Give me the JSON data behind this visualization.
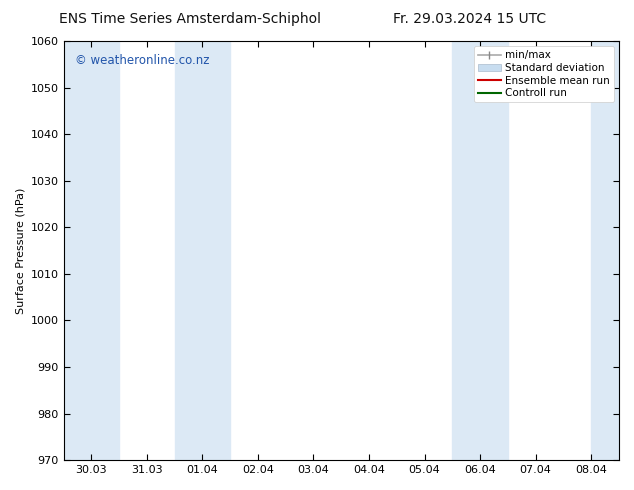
{
  "title_left": "ENS Time Series Amsterdam-Schiphol",
  "title_right": "Fr. 29.03.2024 15 UTC",
  "ylabel": "Surface Pressure (hPa)",
  "ylim": [
    970,
    1060
  ],
  "yticks": [
    970,
    980,
    990,
    1000,
    1010,
    1020,
    1030,
    1040,
    1050,
    1060
  ],
  "xtick_labels": [
    "30.03",
    "31.03",
    "01.04",
    "02.04",
    "03.04",
    "04.04",
    "05.04",
    "06.04",
    "07.04",
    "08.04"
  ],
  "xtick_positions": [
    0,
    1,
    2,
    3,
    4,
    5,
    6,
    7,
    8,
    9
  ],
  "xlim": [
    -0.5,
    9.5
  ],
  "bg_color": "#ffffff",
  "plot_bg_color": "#ffffff",
  "shaded_bands": [
    {
      "x_start": -0.5,
      "x_end": 0.5
    },
    {
      "x_start": 1.5,
      "x_end": 2.5
    },
    {
      "x_start": 6.5,
      "x_end": 7.5
    },
    {
      "x_start": 9.0,
      "x_end": 9.5
    }
  ],
  "band_color": "#dce9f5",
  "watermark_text": "© weatheronline.co.nz",
  "watermark_color": "#2255aa",
  "legend_labels": [
    "min/max",
    "Standard deviation",
    "Ensemble mean run",
    "Controll run"
  ],
  "title_fontsize": 10,
  "axis_label_fontsize": 8,
  "tick_fontsize": 8,
  "watermark_fontsize": 8.5,
  "legend_fontsize": 7.5
}
